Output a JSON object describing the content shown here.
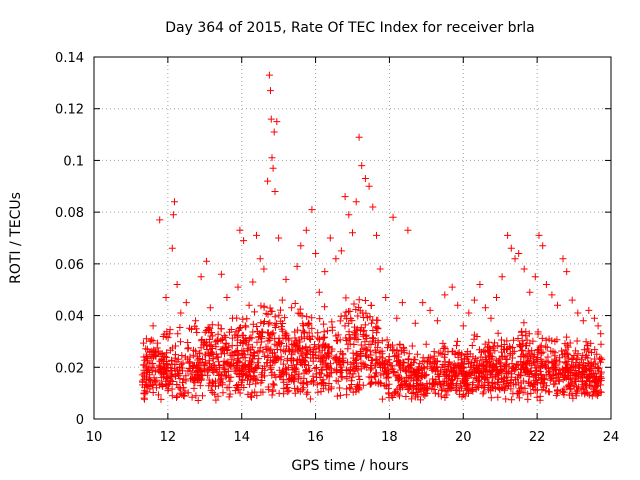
{
  "chart_data": {
    "type": "scatter",
    "title": "Day 364 of 2015, Rate Of TEC Index for receiver brla",
    "xlabel": "GPS time / hours",
    "ylabel": "ROTI / TECUs",
    "xlim": [
      10,
      24
    ],
    "ylim": [
      0,
      0.14
    ],
    "x_ticks": [
      10,
      12,
      14,
      16,
      18,
      20,
      22,
      24
    ],
    "y_ticks": [
      0,
      0.02,
      0.04,
      0.06,
      0.08,
      0.1,
      0.12,
      0.14
    ],
    "x_tick_labels": [
      "10",
      "12",
      "14",
      "16",
      "18",
      "20",
      "22",
      "24"
    ],
    "y_tick_labels": [
      "0",
      "0.02",
      "0.04",
      "0.06",
      "0.08",
      "0.1",
      "0.12",
      "0.14"
    ],
    "grid": true,
    "marker": "+",
    "color": "#ff0000",
    "series": [
      {
        "points": [
          [
            11.35,
            0.021
          ],
          [
            11.42,
            0.031
          ],
          [
            11.5,
            0.018
          ],
          [
            11.6,
            0.036
          ],
          [
            11.7,
            0.015
          ],
          [
            11.78,
            0.077
          ],
          [
            11.85,
            0.025
          ],
          [
            11.95,
            0.047
          ],
          [
            12.05,
            0.033
          ],
          [
            12.12,
            0.066
          ],
          [
            12.15,
            0.079
          ],
          [
            12.18,
            0.084
          ],
          [
            12.25,
            0.052
          ],
          [
            12.35,
            0.041
          ],
          [
            12.5,
            0.045
          ],
          [
            12.6,
            0.022
          ],
          [
            12.75,
            0.038
          ],
          [
            12.9,
            0.055
          ],
          [
            13.05,
            0.061
          ],
          [
            13.15,
            0.043
          ],
          [
            13.3,
            0.028
          ],
          [
            13.45,
            0.056
          ],
          [
            13.6,
            0.047
          ],
          [
            13.75,
            0.039
          ],
          [
            13.9,
            0.051
          ],
          [
            13.95,
            0.073
          ],
          [
            14.05,
            0.069
          ],
          [
            14.2,
            0.044
          ],
          [
            14.3,
            0.053
          ],
          [
            14.4,
            0.071
          ],
          [
            14.5,
            0.062
          ],
          [
            14.6,
            0.058
          ],
          [
            14.7,
            0.092
          ],
          [
            14.75,
            0.133
          ],
          [
            14.78,
            0.127
          ],
          [
            14.8,
            0.116
          ],
          [
            14.82,
            0.101
          ],
          [
            14.85,
            0.097
          ],
          [
            14.88,
            0.111
          ],
          [
            14.9,
            0.088
          ],
          [
            14.95,
            0.115
          ],
          [
            15.0,
            0.07
          ],
          [
            15.1,
            0.046
          ],
          [
            15.2,
            0.054
          ],
          [
            15.35,
            0.043
          ],
          [
            15.5,
            0.059
          ],
          [
            15.6,
            0.067
          ],
          [
            15.75,
            0.073
          ],
          [
            15.9,
            0.081
          ],
          [
            16.0,
            0.064
          ],
          [
            16.1,
            0.049
          ],
          [
            16.25,
            0.057
          ],
          [
            16.4,
            0.07
          ],
          [
            16.55,
            0.062
          ],
          [
            16.7,
            0.065
          ],
          [
            16.8,
            0.086
          ],
          [
            16.9,
            0.079
          ],
          [
            17.0,
            0.072
          ],
          [
            17.1,
            0.084
          ],
          [
            17.18,
            0.109
          ],
          [
            17.25,
            0.098
          ],
          [
            17.35,
            0.093
          ],
          [
            17.45,
            0.09
          ],
          [
            17.55,
            0.082
          ],
          [
            17.65,
            0.071
          ],
          [
            17.75,
            0.058
          ],
          [
            17.9,
            0.047
          ],
          [
            18.1,
            0.078
          ],
          [
            18.2,
            0.039
          ],
          [
            18.35,
            0.045
          ],
          [
            18.5,
            0.073
          ],
          [
            18.7,
            0.037
          ],
          [
            18.9,
            0.045
          ],
          [
            19.1,
            0.042
          ],
          [
            19.3,
            0.038
          ],
          [
            19.5,
            0.048
          ],
          [
            19.7,
            0.051
          ],
          [
            19.85,
            0.044
          ],
          [
            20.0,
            0.036
          ],
          [
            20.15,
            0.041
          ],
          [
            20.3,
            0.046
          ],
          [
            20.45,
            0.052
          ],
          [
            20.6,
            0.043
          ],
          [
            20.75,
            0.039
          ],
          [
            20.9,
            0.047
          ],
          [
            21.05,
            0.055
          ],
          [
            21.2,
            0.071
          ],
          [
            21.3,
            0.066
          ],
          [
            21.4,
            0.062
          ],
          [
            21.5,
            0.064
          ],
          [
            21.65,
            0.058
          ],
          [
            21.8,
            0.049
          ],
          [
            21.95,
            0.055
          ],
          [
            22.05,
            0.071
          ],
          [
            22.15,
            0.067
          ],
          [
            22.25,
            0.052
          ],
          [
            22.4,
            0.048
          ],
          [
            22.55,
            0.044
          ],
          [
            22.7,
            0.062
          ],
          [
            22.8,
            0.057
          ],
          [
            22.95,
            0.046
          ],
          [
            23.1,
            0.041
          ],
          [
            23.25,
            0.038
          ],
          [
            23.4,
            0.042
          ],
          [
            23.55,
            0.039
          ],
          [
            23.65,
            0.036
          ],
          [
            23.72,
            0.033
          ]
        ],
        "dense_band": {
          "x_range": [
            11.3,
            23.75
          ],
          "y_low": 0.007,
          "y_high_profile": [
            [
              11.3,
              0.03
            ],
            [
              12.0,
              0.036
            ],
            [
              13.0,
              0.04
            ],
            [
              14.0,
              0.042
            ],
            [
              14.8,
              0.05
            ],
            [
              15.5,
              0.046
            ],
            [
              16.5,
              0.048
            ],
            [
              17.5,
              0.05
            ],
            [
              18.0,
              0.034
            ],
            [
              19.0,
              0.03
            ],
            [
              20.0,
              0.032
            ],
            [
              21.0,
              0.036
            ],
            [
              21.5,
              0.038
            ],
            [
              22.0,
              0.036
            ],
            [
              23.0,
              0.032
            ],
            [
              23.75,
              0.03
            ]
          ]
        }
      }
    ]
  }
}
